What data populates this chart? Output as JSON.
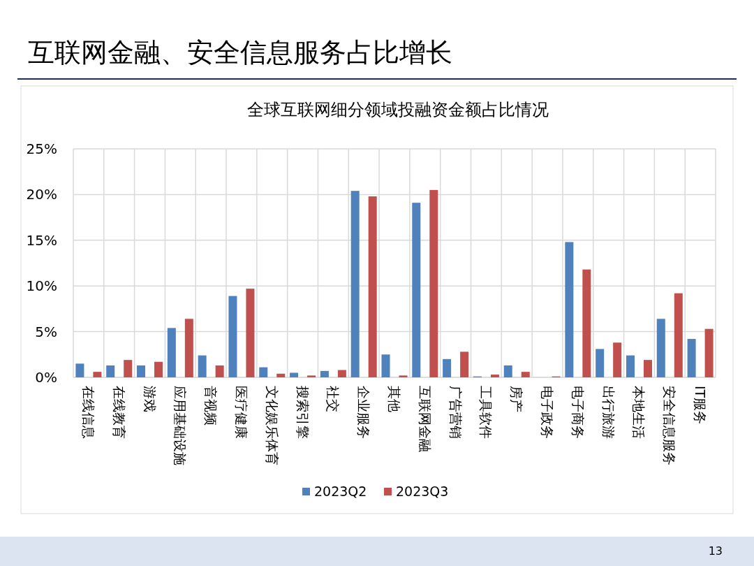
{
  "chart_data": {
    "type": "bar",
    "title": "互联网金融、安全信息服务占比增长",
    "subtitle": "全球互联网细分领域投融资金额占比情况",
    "categories": [
      "在线信息",
      "在线教育",
      "游戏",
      "应用基础设施",
      "音视频",
      "医疗健康",
      "文化娱乐体育",
      "搜索引擎",
      "社交",
      "企业服务",
      "其他",
      "互联网金融",
      "广告营销",
      "工具软件",
      "房产",
      "电子政务",
      "电子商务",
      "出行旅游",
      "本地生活",
      "安全信息服务",
      "IT服务"
    ],
    "series": [
      {
        "name": "2023Q2",
        "color": "#4f81bd",
        "values": [
          1.5,
          1.3,
          1.3,
          5.4,
          2.4,
          8.9,
          1.1,
          0.5,
          0.7,
          20.4,
          2.5,
          19.1,
          2.0,
          0.1,
          1.3,
          0,
          14.8,
          3.1,
          2.4,
          6.4,
          4.2
        ]
      },
      {
        "name": "2023Q3",
        "color": "#c0504d",
        "values": [
          0.6,
          1.9,
          1.7,
          6.4,
          1.3,
          9.7,
          0.4,
          0.2,
          0.8,
          19.8,
          0.2,
          20.5,
          2.8,
          0.3,
          0.6,
          0.1,
          11.8,
          3.8,
          1.9,
          9.2,
          5.3
        ]
      }
    ],
    "ylim": [
      0,
      25
    ],
    "yticks": [
      {
        "value": 0,
        "label": "0%"
      },
      {
        "value": 5,
        "label": "5%"
      },
      {
        "value": 10,
        "label": "10%"
      },
      {
        "value": 15,
        "label": "15%"
      },
      {
        "value": 20,
        "label": "20%"
      },
      {
        "value": 25,
        "label": "25%"
      }
    ],
    "grid": true,
    "legend": "bottom",
    "annotations": [
      "13"
    ]
  }
}
